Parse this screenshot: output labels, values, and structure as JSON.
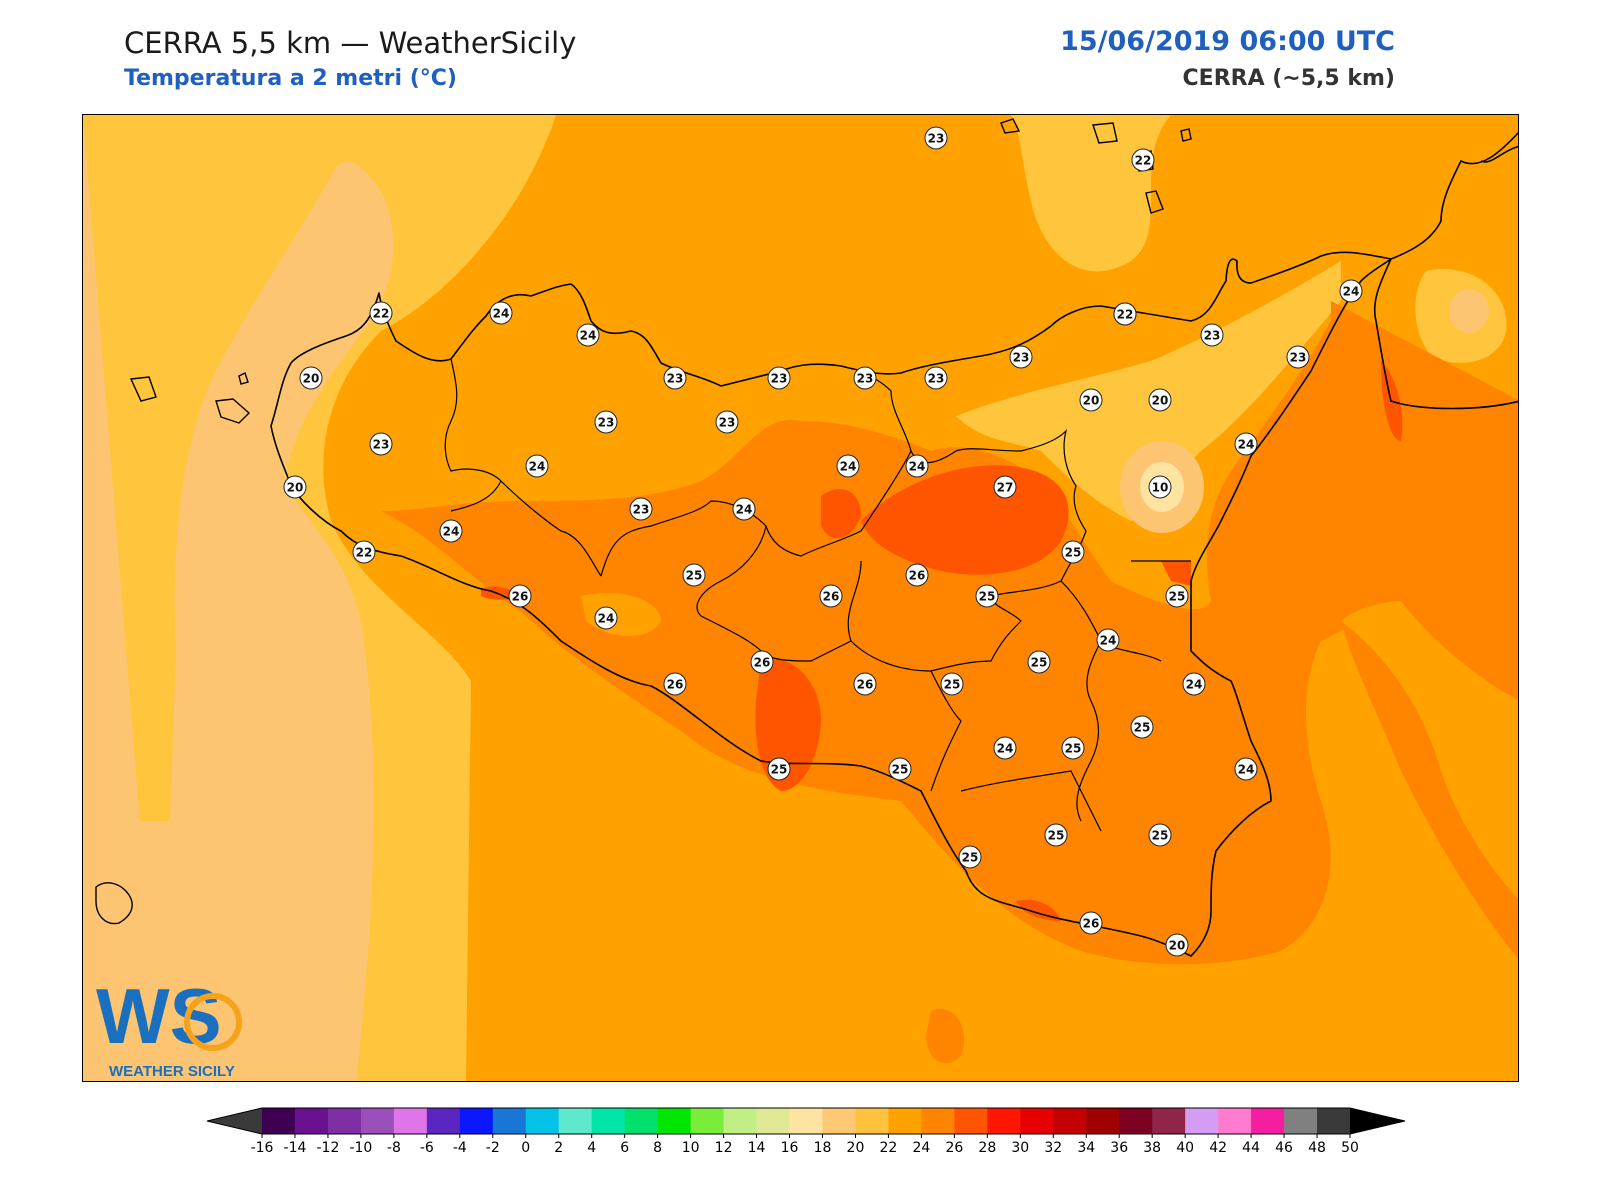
{
  "header": {
    "title": "CERRA 5,5 km — WeatherSicily",
    "subtitle": "Temperatura a 2 metri (°C)",
    "datetime": "15/06/2019 06:00 UTC",
    "model": "CERRA (~5,5 km)"
  },
  "logo": {
    "mark": "WS",
    "text": "WEATHER SICILY"
  },
  "stations": [
    {
      "value": "23"
    },
    {
      "value": "22"
    },
    {
      "value": "24"
    },
    {
      "value": "22"
    },
    {
      "value": "24"
    },
    {
      "value": "24"
    },
    {
      "value": "20"
    },
    {
      "value": "22"
    },
    {
      "value": "23"
    },
    {
      "value": "23"
    },
    {
      "value": "23"
    },
    {
      "value": "23"
    },
    {
      "value": "23"
    },
    {
      "value": "22"
    },
    {
      "value": "23"
    },
    {
      "value": "23"
    },
    {
      "value": "20"
    },
    {
      "value": "20"
    },
    {
      "value": "23"
    },
    {
      "value": "23"
    },
    {
      "value": "23"
    },
    {
      "value": "20"
    },
    {
      "value": "24"
    },
    {
      "value": "24"
    },
    {
      "value": "24"
    },
    {
      "value": "27"
    },
    {
      "value": "10"
    },
    {
      "value": "24"
    },
    {
      "value": "23"
    },
    {
      "value": "24"
    },
    {
      "value": "22"
    },
    {
      "value": "24"
    },
    {
      "value": "25"
    },
    {
      "value": "25"
    },
    {
      "value": "26"
    },
    {
      "value": "26"
    },
    {
      "value": "25"
    },
    {
      "value": "25"
    },
    {
      "value": "26"
    },
    {
      "value": "24"
    },
    {
      "value": "24"
    },
    {
      "value": "26"
    },
    {
      "value": "26"
    },
    {
      "value": "26"
    },
    {
      "value": "25"
    },
    {
      "value": "25"
    },
    {
      "value": "24"
    },
    {
      "value": "24"
    },
    {
      "value": "25"
    },
    {
      "value": "25"
    },
    {
      "value": "25"
    },
    {
      "value": "25"
    },
    {
      "value": "24"
    },
    {
      "value": "25"
    },
    {
      "value": "25"
    },
    {
      "value": "26"
    },
    {
      "value": "25"
    },
    {
      "value": "20"
    }
  ],
  "colorbar": {
    "ticks": [
      "-16",
      "-14",
      "-12",
      "-10",
      "-8",
      "-6",
      "-4",
      "-2",
      "0",
      "2",
      "4",
      "6",
      "8",
      "10",
      "12",
      "14",
      "16",
      "18",
      "20",
      "22",
      "24",
      "26",
      "28",
      "30",
      "32",
      "34",
      "36",
      "38",
      "40",
      "42",
      "44",
      "46",
      "48",
      "50"
    ],
    "colors": [
      "#3d0052",
      "#6a1190",
      "#7e2fa3",
      "#9b4fb8",
      "#df75e8",
      "#5a25c0",
      "#0a17ff",
      "#1776d6",
      "#05c3e6",
      "#5ee8cc",
      "#00e5a8",
      "#00e06a",
      "#00e600",
      "#7aed3a",
      "#c2ef85",
      "#e0e895",
      "#ffe3a0",
      "#ffc875",
      "#ffc23e",
      "#ffa200",
      "#ff8400",
      "#ff5400",
      "#ff1700",
      "#e60000",
      "#c40000",
      "#a10000",
      "#7c0022",
      "#8f2548",
      "#d59cf4",
      "#ff7bd0",
      "#f61ea0",
      "#808080",
      "#3a3a3a"
    ],
    "under_color": "#3a3a3a",
    "over_color": "#000000"
  },
  "map_colors": {
    "t20_22": "#fdc572",
    "t22_24": "#ffc53d",
    "t24_26": "#ffa200",
    "t26_28": "#ff8400",
    "t28_30": "#ff5400",
    "coast": "#000000"
  }
}
